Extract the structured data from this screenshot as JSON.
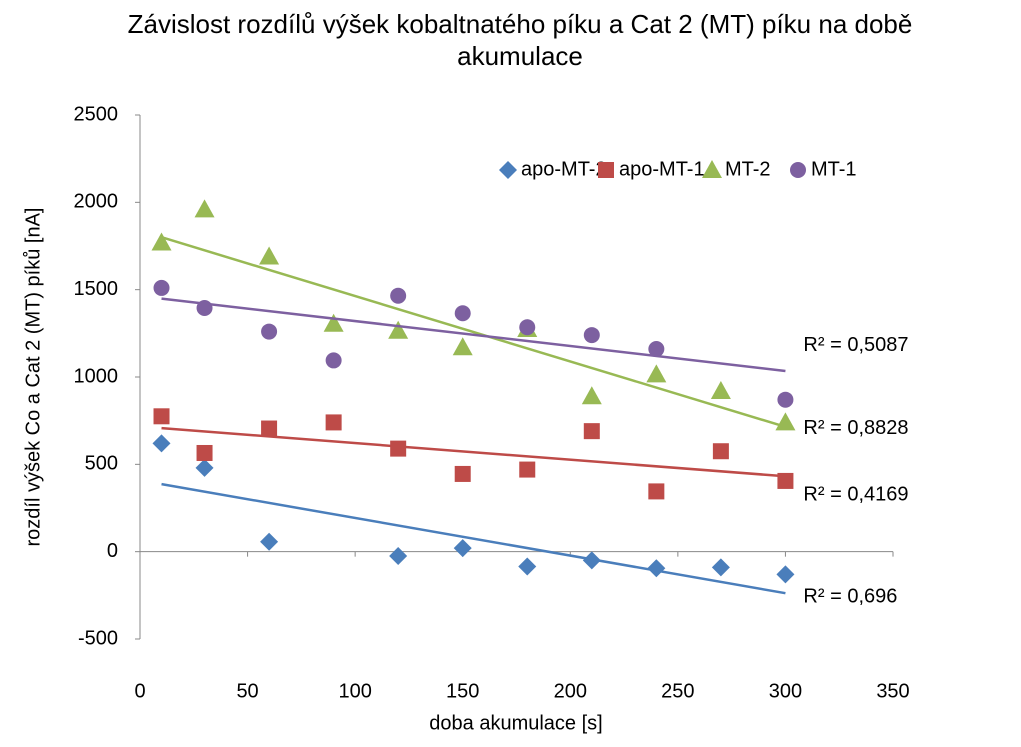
{
  "chart_data": {
    "type": "scatter",
    "title": "Závislost rozdílů výšek kobaltnatého píku a Cat 2 (MT) píku na době akumulace",
    "x_label": "doba akumulace [s]",
    "y_label": "rozdíl výšek Co a Cat 2 (MT) píků [nA]",
    "xlim": [
      0,
      350
    ],
    "xticks": [
      0,
      50,
      100,
      150,
      200,
      250,
      300,
      350
    ],
    "ylim": [
      -500,
      2500
    ],
    "yticks": [
      -500,
      0,
      500,
      1000,
      1500,
      2000,
      2500
    ],
    "grid": false,
    "legend": "top-right",
    "trendline": "linear",
    "series": [
      {
        "name": "apo-MT-2",
        "color": "#4a7ebb",
        "marker": "diamond",
        "r2_label": "R² = 0,696",
        "x": [
          10,
          30,
          60,
          120,
          150,
          180,
          210,
          240,
          270,
          300
        ],
        "values": [
          620,
          480,
          57,
          -25,
          20,
          -85,
          -50,
          -95,
          -90,
          -130
        ]
      },
      {
        "name": "apo-MT-1",
        "color": "#be4b48",
        "marker": "square",
        "r2_label": "R² = 0,4169",
        "x": [
          10,
          30,
          60,
          90,
          120,
          150,
          180,
          210,
          240,
          270,
          300
        ],
        "values": [
          775,
          565,
          705,
          740,
          590,
          445,
          470,
          690,
          345,
          575,
          405
        ]
      },
      {
        "name": "MT-2",
        "color": "#98b954",
        "marker": "triangle",
        "r2_label": "R² = 0,8828",
        "x": [
          10,
          30,
          60,
          90,
          120,
          150,
          180,
          210,
          240,
          270,
          300
        ],
        "values": [
          1770,
          1960,
          1690,
          1305,
          1265,
          1170,
          1275,
          890,
          1015,
          920,
          740
        ]
      },
      {
        "name": "MT-1",
        "color": "#7d60a0",
        "marker": "circle",
        "r2_label": "R² = 0,5087",
        "x": [
          10,
          30,
          60,
          90,
          120,
          150,
          180,
          210,
          240,
          300
        ],
        "values": [
          1510,
          1395,
          1260,
          1095,
          1465,
          1365,
          1285,
          1240,
          1160,
          870
        ]
      }
    ]
  }
}
